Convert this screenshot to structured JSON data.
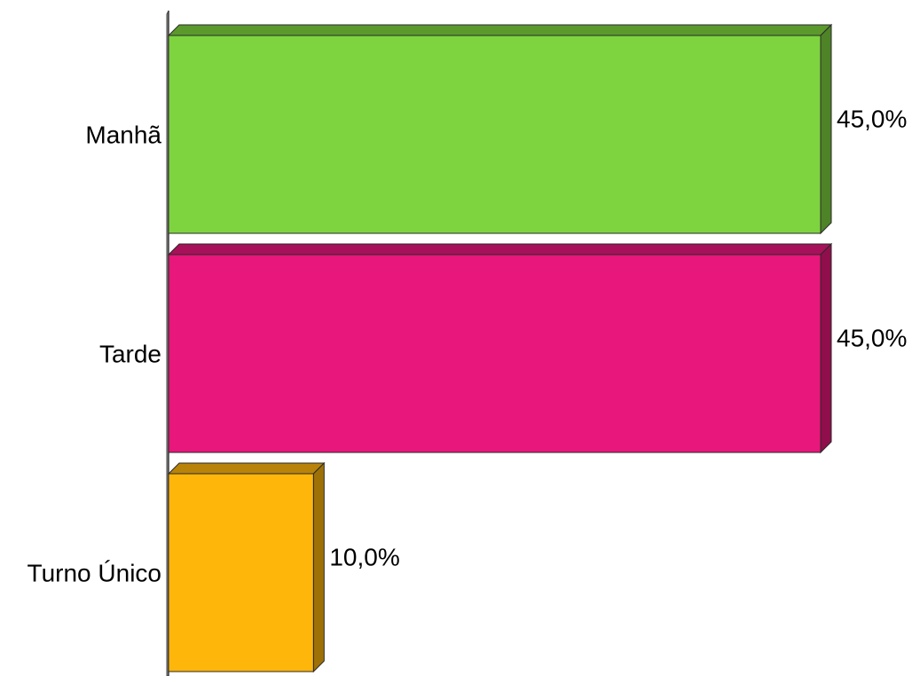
{
  "chart_data": {
    "type": "bar",
    "orientation": "horizontal",
    "style": "3d",
    "title": "",
    "xlabel": "",
    "ylabel": "",
    "categories": [
      "Manhã",
      "Tarde",
      "Turno Único"
    ],
    "values": [
      45.0,
      45.0,
      10.0
    ],
    "value_labels": [
      "45,0%",
      "45,0%",
      "10,0%"
    ],
    "colors": [
      "#7ed43f",
      "#e8177b",
      "#ffb60b"
    ],
    "xlim": [
      0,
      45
    ],
    "grid": false,
    "legend": "none"
  }
}
